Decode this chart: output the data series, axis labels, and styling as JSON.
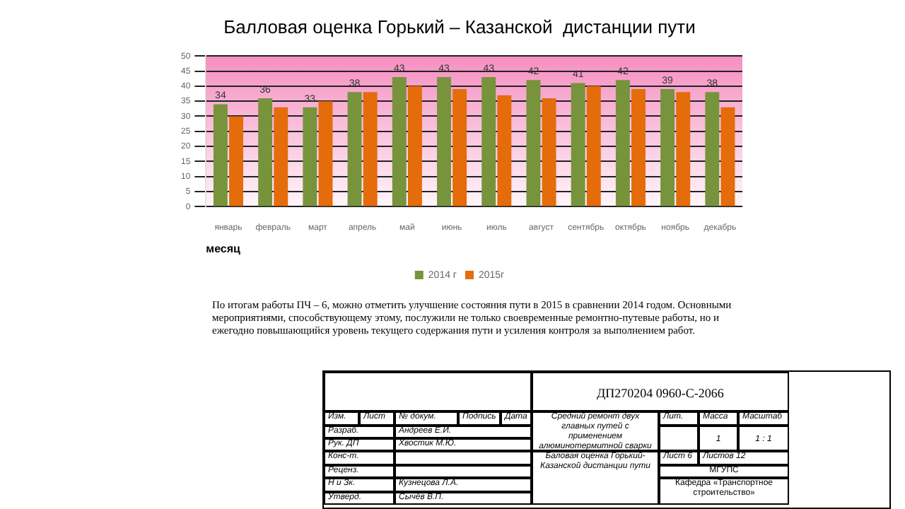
{
  "chart_data": {
    "type": "bar",
    "title": "Балловая оценка Горький – Казанской  дистанции пути",
    "xlabel": "месяц",
    "categories": [
      "январь",
      "февраль",
      "март",
      "апрель",
      "май",
      "июнь",
      "июль",
      "август",
      "сентябрь",
      "октябрь",
      "ноябрь",
      "декабрь"
    ],
    "series": [
      {
        "name": "2014 г",
        "color": "#77933c",
        "values": [
          34,
          36,
          33,
          38,
          43,
          43,
          43,
          42,
          41,
          42,
          39,
          38
        ],
        "value_labels": [
          "34",
          "36",
          "33",
          "38",
          "43",
          "43",
          "43",
          "42",
          "41",
          "42",
          "39",
          "38"
        ]
      },
      {
        "name": "2015г",
        "color": "#e46c0a",
        "values": [
          30,
          33,
          35,
          38,
          40,
          39,
          37,
          36,
          40,
          39,
          38,
          33
        ]
      }
    ],
    "ylim": [
      0,
      50
    ],
    "yticks": [
      0,
      5,
      10,
      15,
      20,
      25,
      30,
      35,
      40,
      45,
      50
    ],
    "grid": "y",
    "legend": "bottom",
    "annotations": [
      "По  итогам  работы ПЧ – 6, можно отметить улучшение  состояния пути в 2015 в сравнении 2014 годом. Основными мероприятиями, способствующему  этому, послужили не только  своевременные ремонтно-путевые работы, но и ежегодно повышающийся уровень текущего  содержания пути и усиления контроля  за выполнением работ.",
      "ДП270204  0960-С-2066",
      "Средний ремонт двух главных путей с применением алюминотермитной сварки",
      "Баловая оценка Горький-Казанской дистанции пути",
      "Изм.",
      "Лист",
      "№ докум.",
      "Подпись",
      "Дата",
      "Разраб.",
      "Андреев Е.И.",
      "Рук. ДП",
      "Хвостик М.Ю.",
      "Конс-т.",
      "Реценз.",
      "Н и Зк.",
      "Кузнецова Л.А.",
      "Утверд.",
      "Сычёв В.П.",
      "Лит.",
      "Масса",
      "Масштаб",
      "1",
      "1 : 1",
      "Лист  6",
      "Листов  12",
      "МГУПС",
      "Кафедра «Транспортное строительство»"
    ]
  }
}
